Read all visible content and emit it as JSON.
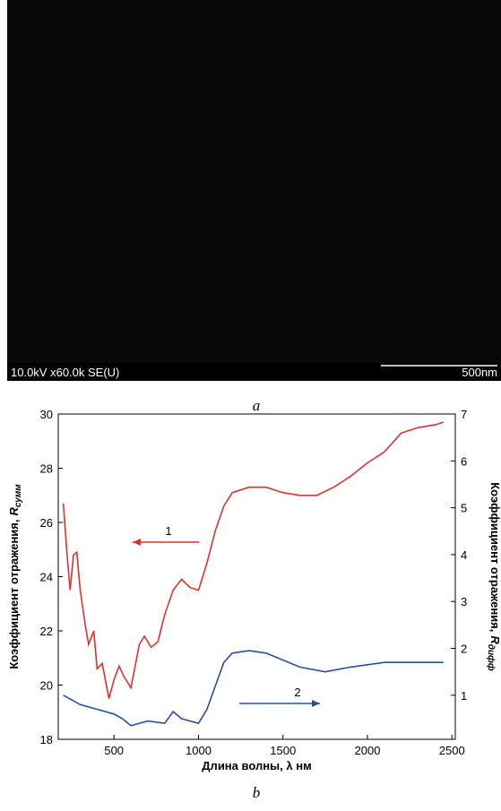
{
  "image": {
    "info": "10.0kV x60.0k SE(U)",
    "scale": "500nm",
    "panel": "a"
  },
  "chart_data": {
    "type": "line",
    "panel": "b",
    "xlabel": "Длина волны, λ нм",
    "ylabel": "Коэффициент отражения,",
    "ylabel_symbol": "R",
    "ylabel_sub": "сумм",
    "y2label": "Коэффициент отражения,",
    "y2label_symbol": "R",
    "y2label_sub": "дифф",
    "xlim": [
      170,
      2520
    ],
    "xticks": [
      500,
      1000,
      1500,
      2000,
      2500
    ],
    "ylim": [
      18,
      30
    ],
    "yticks": [
      18,
      20,
      22,
      24,
      26,
      28,
      30
    ],
    "y2lim": [
      0.06,
      7
    ],
    "y2ticks": [
      1,
      2,
      3,
      4,
      5,
      6,
      7
    ],
    "series": [
      {
        "name": "1",
        "color": "#e03030",
        "x": [
          200,
          220,
          240,
          260,
          280,
          300,
          330,
          350,
          380,
          400,
          430,
          470,
          500,
          530,
          560,
          600,
          650,
          680,
          720,
          760,
          800,
          850,
          900,
          950,
          1000,
          1050,
          1100,
          1150,
          1200,
          1300,
          1400,
          1500,
          1600,
          1700,
          1800,
          1900,
          2000,
          2100,
          2200,
          2300,
          2400,
          2450
        ],
        "values": [
          26.7,
          25,
          23.5,
          24.8,
          24.9,
          23.5,
          22.2,
          21.5,
          22,
          20.6,
          20.8,
          19.5,
          20.2,
          20.7,
          20.3,
          19.9,
          21.5,
          21.8,
          21.4,
          21.6,
          22.6,
          23.5,
          23.9,
          23.6,
          23.5,
          24.5,
          25.7,
          26.6,
          27.1,
          27.3,
          27.3,
          27.1,
          27,
          27,
          27.3,
          27.7,
          28.2,
          28.6,
          29.3,
          29.5,
          29.6,
          29.7
        ]
      },
      {
        "name": "2",
        "color": "#2a4fa0",
        "axis": "y2",
        "x": [
          200,
          300,
          400,
          500,
          550,
          600,
          700,
          800,
          850,
          900,
          1000,
          1050,
          1100,
          1150,
          1200,
          1300,
          1400,
          1600,
          1750,
          1900,
          2100,
          2300,
          2450
        ],
        "values": [
          1,
          0.8,
          0.7,
          0.6,
          0.5,
          0.35,
          0.45,
          0.4,
          0.65,
          0.5,
          0.4,
          0.7,
          1.2,
          1.7,
          1.9,
          1.95,
          1.9,
          1.6,
          1.5,
          1.6,
          1.7,
          1.7,
          1.7
        ]
      }
    ]
  }
}
